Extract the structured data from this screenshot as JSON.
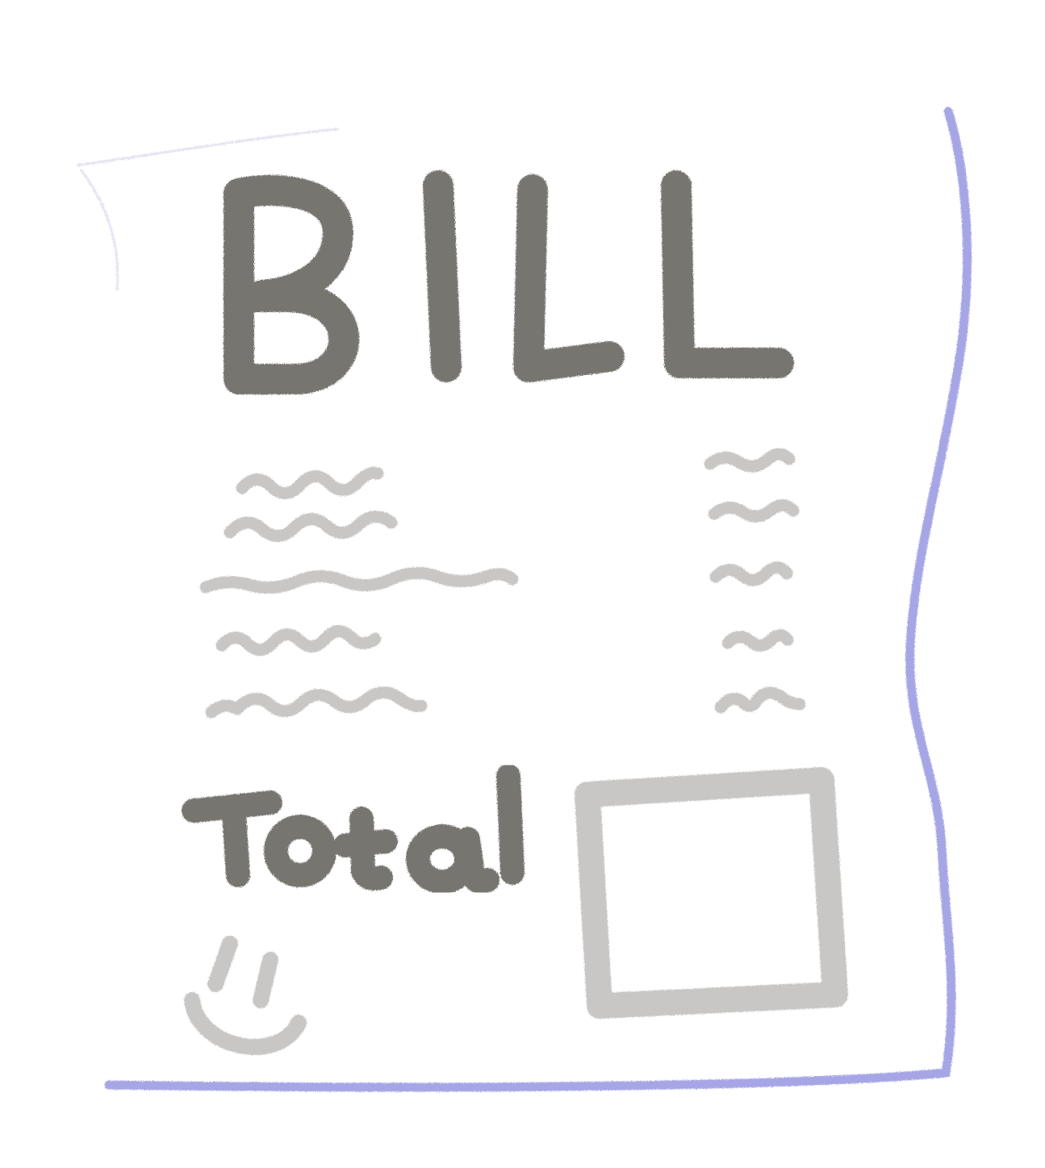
{
  "bill": {
    "title": "BILL",
    "total_label": "Total",
    "colors": {
      "paper": "#ffffff",
      "edge": "#a6a6e6",
      "ink_dark": "#77746f",
      "ink_light": "#c8c7c5"
    },
    "icons": {
      "smiley": "smiley-face-icon",
      "scribble": "scribble-line-icon",
      "total_box": "empty-total-box"
    }
  }
}
